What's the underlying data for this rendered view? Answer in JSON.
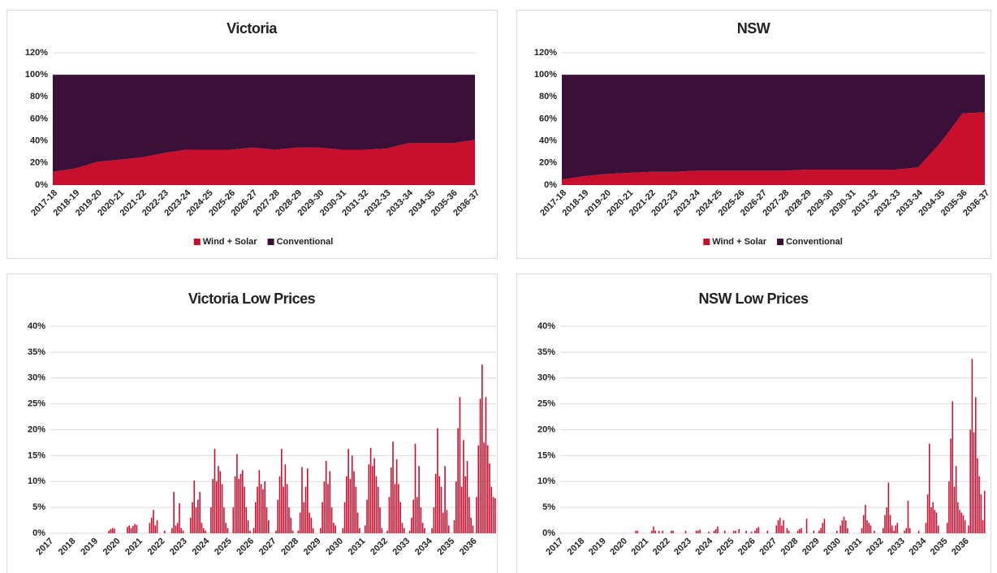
{
  "chart_data": [
    {
      "type": "area",
      "title": "Victoria",
      "stacked": true,
      "grid": true,
      "legend": "bottom",
      "categories": [
        "2017-18",
        "2018-19",
        "2019-20",
        "2020-21",
        "2021-22",
        "2022-23",
        "2023-24",
        "2024-25",
        "2025-26",
        "2026-27",
        "2027-28",
        "2028-29",
        "2029-30",
        "2030-31",
        "2031-32",
        "2032-33",
        "2033-34",
        "2034-35",
        "2035-36",
        "2036-37"
      ],
      "series": [
        {
          "name": "Wind + Solar",
          "color": "#c8102e",
          "values": [
            12,
            15,
            21,
            23,
            25,
            29,
            32,
            32,
            32,
            34,
            32,
            34,
            34,
            32,
            32,
            33,
            38,
            38,
            38,
            41
          ]
        },
        {
          "name": "Conventional",
          "color": "#3a1038",
          "values": [
            88,
            85,
            79,
            77,
            75,
            71,
            68,
            68,
            68,
            66,
            68,
            66,
            66,
            68,
            68,
            67,
            62,
            62,
            62,
            59
          ]
        }
      ],
      "ylim": [
        0,
        120
      ],
      "yticks": [
        {
          "value": 0,
          "label": "0%"
        },
        {
          "value": 20,
          "label": "20%"
        },
        {
          "value": 40,
          "label": "40%"
        },
        {
          "value": 60,
          "label": "60%"
        },
        {
          "value": 80,
          "label": "80%"
        },
        {
          "value": 100,
          "label": "100%"
        },
        {
          "value": 120,
          "label": "120%"
        }
      ]
    },
    {
      "type": "area",
      "title": "NSW",
      "stacked": true,
      "grid": true,
      "legend": "bottom",
      "categories": [
        "2017-18",
        "2018-19",
        "2019-20",
        "2020-21",
        "2021-22",
        "2022-23",
        "2023-24",
        "2024-25",
        "2025-26",
        "2026-27",
        "2027-28",
        "2028-29",
        "2029-30",
        "2030-31",
        "2031-32",
        "2032-33",
        "2033-34",
        "2034-35",
        "2035-36",
        "2036-37"
      ],
      "series": [
        {
          "name": "Wind + Solar",
          "color": "#c8102e",
          "values": [
            5,
            8,
            10,
            11,
            12,
            12,
            13,
            13,
            13,
            13,
            13,
            14,
            14,
            14,
            14,
            14,
            16,
            38,
            65,
            66
          ]
        },
        {
          "name": "Conventional",
          "color": "#3a1038",
          "values": [
            95,
            92,
            90,
            89,
            88,
            88,
            87,
            87,
            87,
            87,
            87,
            86,
            86,
            86,
            86,
            86,
            84,
            62,
            35,
            34
          ]
        }
      ],
      "ylim": [
        0,
        120
      ],
      "yticks": [
        {
          "value": 0,
          "label": "0%"
        },
        {
          "value": 20,
          "label": "20%"
        },
        {
          "value": 40,
          "label": "40%"
        },
        {
          "value": 60,
          "label": "60%"
        },
        {
          "value": 80,
          "label": "80%"
        },
        {
          "value": 100,
          "label": "100%"
        },
        {
          "value": 120,
          "label": "120%"
        }
      ]
    },
    {
      "type": "bar",
      "title": "Victoria Low Prices",
      "grid": true,
      "color": "#c8102e",
      "categories": [
        "2017",
        null,
        null,
        null,
        null,
        null,
        null,
        null,
        null,
        null,
        null,
        null,
        "2018",
        null,
        null,
        null,
        null,
        null,
        null,
        null,
        null,
        null,
        null,
        null,
        "2019",
        null,
        null,
        null,
        null,
        null,
        null,
        null,
        null,
        null,
        null,
        null,
        "2020",
        null,
        null,
        null,
        null,
        null,
        null,
        null,
        null,
        null,
        null,
        null,
        "2021",
        null,
        null,
        null,
        null,
        null,
        null,
        null,
        null,
        null,
        null,
        null,
        "2022",
        null,
        null,
        null,
        null,
        null,
        null,
        null,
        null,
        null,
        null,
        null,
        "2023",
        null,
        null,
        null,
        null,
        null,
        null,
        null,
        null,
        null,
        null,
        null,
        "2024",
        null,
        null,
        null,
        null,
        null,
        null,
        null,
        null,
        null,
        null,
        null,
        "2025",
        null,
        null,
        null,
        null,
        null,
        null,
        null,
        null,
        null,
        null,
        null,
        "2026",
        null,
        null,
        null,
        null,
        null,
        null,
        null,
        null,
        null,
        null,
        null,
        "2027",
        null,
        null,
        null,
        null,
        null,
        null,
        null,
        null,
        null,
        null,
        null,
        "2028",
        null,
        null,
        null,
        null,
        null,
        null,
        null,
        null,
        null,
        null,
        null,
        "2029",
        null,
        null,
        null,
        null,
        null,
        null,
        null,
        null,
        null,
        null,
        null,
        "2030",
        null,
        null,
        null,
        null,
        null,
        null,
        null,
        null,
        null,
        null,
        null,
        "2031",
        null,
        null,
        null,
        null,
        null,
        null,
        null,
        null,
        null,
        null,
        null,
        "2032",
        null,
        null,
        null,
        null,
        null,
        null,
        null,
        null,
        null,
        null,
        null,
        "2033",
        null,
        null,
        null,
        null,
        null,
        null,
        null,
        null,
        null,
        null,
        null,
        "2034",
        null,
        null,
        null,
        null,
        null,
        null,
        null,
        null,
        null,
        null,
        null,
        "2035",
        null,
        null,
        null,
        null,
        null,
        null,
        null,
        null,
        null,
        null,
        null,
        "2036",
        null,
        null,
        null,
        null,
        null,
        null,
        null,
        null,
        null,
        null,
        null
      ],
      "values": [
        0,
        0,
        0,
        0,
        0,
        0,
        0,
        0,
        0,
        0,
        0,
        0,
        0,
        0,
        0,
        0,
        0,
        0,
        0,
        0,
        0,
        0,
        0,
        0,
        0,
        0,
        0,
        0,
        0,
        0,
        0,
        0.5,
        0.8,
        1.0,
        0.9,
        0,
        0,
        0,
        0,
        0,
        0,
        1.2,
        1.5,
        1.0,
        1.4,
        1.8,
        1.6,
        0,
        0,
        0,
        0,
        0,
        0,
        2.0,
        3.0,
        4.5,
        1.5,
        2.5,
        0,
        0,
        0,
        0.5,
        0,
        0,
        0,
        1.0,
        8.0,
        1.5,
        2.0,
        5.8,
        1.0,
        0.5,
        0,
        0,
        0,
        3.0,
        6.0,
        10.2,
        5.0,
        6.5,
        8.0,
        2.0,
        1.0,
        0.5,
        0,
        0,
        5.0,
        10.5,
        16.3,
        10.0,
        13.0,
        12.0,
        9.5,
        5.0,
        2.0,
        1.0,
        0,
        0,
        5.0,
        11.0,
        15.3,
        10.5,
        11.5,
        12.2,
        9.0,
        5.0,
        2.5,
        0.5,
        0,
        1.0,
        6.0,
        9.0,
        12.2,
        9.5,
        8.5,
        10.0,
        5.0,
        2.5,
        0,
        0,
        0,
        0.5,
        6.5,
        11.0,
        16.3,
        9.0,
        13.3,
        9.5,
        5.0,
        3.0,
        0.5,
        0,
        0,
        0.5,
        4.0,
        12.8,
        6.0,
        9.0,
        12.5,
        4.0,
        3.0,
        1.0,
        0,
        0,
        0,
        1.0,
        6.0,
        10.0,
        14.0,
        9.5,
        12.0,
        5.0,
        2.0,
        1.5,
        0,
        0,
        0,
        1.0,
        6.0,
        11.0,
        16.3,
        10.5,
        15.0,
        12.0,
        9.0,
        4.0,
        1.0,
        0,
        0,
        1.5,
        6.5,
        13.3,
        16.5,
        13.0,
        14.5,
        11.0,
        9.0,
        5.0,
        1.0,
        0,
        0,
        0.5,
        7.0,
        12.7,
        17.7,
        9.5,
        14.3,
        9.5,
        6.0,
        2.0,
        1.0,
        0,
        0,
        0.5,
        3.0,
        6.5,
        17.3,
        7.0,
        13.0,
        5.0,
        2.0,
        1.0,
        0,
        0,
        0,
        1.0,
        5.0,
        11.5,
        20.3,
        11.0,
        9.0,
        4.0,
        13.0,
        4.5,
        1.5,
        0,
        0,
        2.5,
        10.0,
        20.3,
        26.3,
        9.0,
        18.0,
        11.0,
        14.0,
        7.0,
        3.0,
        1.5,
        0,
        7.0,
        17.0,
        26.0,
        32.6,
        17.5,
        26.3,
        17.0,
        13.5,
        9.0,
        7.0,
        6.8
      ],
      "ylim": [
        0,
        40
      ],
      "yticks": [
        {
          "value": 0,
          "label": "0%"
        },
        {
          "value": 5,
          "label": "5%"
        },
        {
          "value": 10,
          "label": "10%"
        },
        {
          "value": 15,
          "label": "15%"
        },
        {
          "value": 20,
          "label": "20%"
        },
        {
          "value": 25,
          "label": "25%"
        },
        {
          "value": 30,
          "label": "30%"
        },
        {
          "value": 35,
          "label": "35%"
        },
        {
          "value": 40,
          "label": "40%"
        }
      ]
    },
    {
      "type": "bar",
      "title": "NSW Low Prices",
      "grid": true,
      "color": "#c8102e",
      "categories": [
        "2017",
        null,
        null,
        null,
        null,
        null,
        null,
        null,
        null,
        null,
        null,
        null,
        "2018",
        null,
        null,
        null,
        null,
        null,
        null,
        null,
        null,
        null,
        null,
        null,
        "2019",
        null,
        null,
        null,
        null,
        null,
        null,
        null,
        null,
        null,
        null,
        null,
        "2020",
        null,
        null,
        null,
        null,
        null,
        null,
        null,
        null,
        null,
        null,
        null,
        "2021",
        null,
        null,
        null,
        null,
        null,
        null,
        null,
        null,
        null,
        null,
        null,
        "2022",
        null,
        null,
        null,
        null,
        null,
        null,
        null,
        null,
        null,
        null,
        null,
        "2023",
        null,
        null,
        null,
        null,
        null,
        null,
        null,
        null,
        null,
        null,
        null,
        "2024",
        null,
        null,
        null,
        null,
        null,
        null,
        null,
        null,
        null,
        null,
        null,
        "2025",
        null,
        null,
        null,
        null,
        null,
        null,
        null,
        null,
        null,
        null,
        null,
        "2026",
        null,
        null,
        null,
        null,
        null,
        null,
        null,
        null,
        null,
        null,
        null,
        "2027",
        null,
        null,
        null,
        null,
        null,
        null,
        null,
        null,
        null,
        null,
        null,
        "2028",
        null,
        null,
        null,
        null,
        null,
        null,
        null,
        null,
        null,
        null,
        null,
        "2029",
        null,
        null,
        null,
        null,
        null,
        null,
        null,
        null,
        null,
        null,
        null,
        "2030",
        null,
        null,
        null,
        null,
        null,
        null,
        null,
        null,
        null,
        null,
        null,
        "2031",
        null,
        null,
        null,
        null,
        null,
        null,
        null,
        null,
        null,
        null,
        null,
        "2032",
        null,
        null,
        null,
        null,
        null,
        null,
        null,
        null,
        null,
        null,
        null,
        "2033",
        null,
        null,
        null,
        null,
        null,
        null,
        null,
        null,
        null,
        null,
        null,
        "2034",
        null,
        null,
        null,
        null,
        null,
        null,
        null,
        null,
        null,
        null,
        null,
        "2035",
        null,
        null,
        null,
        null,
        null,
        null,
        null,
        null,
        null,
        null,
        null,
        "2036",
        null,
        null,
        null,
        null,
        null,
        null,
        null,
        null,
        null,
        null,
        null
      ],
      "values": [
        0,
        0,
        0,
        0,
        0,
        0,
        0,
        0,
        0,
        0,
        0,
        0,
        0,
        0,
        0,
        0,
        0,
        0,
        0,
        0,
        0,
        0,
        0,
        0,
        0,
        0,
        0,
        0,
        0,
        0,
        0,
        0,
        0,
        0,
        0,
        0,
        0,
        0,
        0,
        0,
        0,
        0,
        0.5,
        0.5,
        0,
        0,
        0,
        0,
        0,
        0,
        0,
        0.5,
        1.3,
        0.5,
        0,
        0.5,
        0,
        0.5,
        0,
        0,
        0,
        0,
        0.5,
        0.5,
        0,
        0,
        0,
        0,
        0,
        0,
        0.5,
        0,
        0,
        0,
        0,
        0,
        0.5,
        0.5,
        0.7,
        0,
        0,
        0,
        0,
        0.3,
        0,
        0,
        0.5,
        0.8,
        1.3,
        0,
        0,
        0,
        0.5,
        0,
        0,
        0,
        0,
        0.5,
        0.5,
        0,
        0.8,
        0,
        0,
        0,
        0.5,
        0,
        0,
        0.3,
        0,
        0.5,
        1.0,
        1.2,
        0,
        0,
        0,
        0,
        0.5,
        0,
        0,
        0,
        0,
        1.5,
        2.5,
        3.0,
        1.5,
        2.5,
        0,
        1.0,
        0.5,
        0,
        0,
        0,
        0,
        0.5,
        0.8,
        1.0,
        0,
        0,
        2.8,
        0,
        0,
        0,
        0.5,
        0,
        0,
        0.5,
        1.0,
        2.0,
        2.8,
        0,
        0,
        0,
        0,
        0,
        0,
        0.5,
        0,
        1.5,
        2.5,
        3.2,
        2.5,
        1.0,
        0,
        0,
        0,
        0,
        0,
        0,
        0,
        1.0,
        3.5,
        5.5,
        2.5,
        2.0,
        1.5,
        0,
        0.5,
        0,
        0,
        0,
        0,
        1.0,
        3.5,
        5.0,
        9.8,
        3.5,
        1.5,
        0.5,
        1.5,
        2.0,
        0,
        0,
        0,
        0.5,
        1.0,
        6.3,
        1.0,
        0,
        0,
        0,
        0,
        0.5,
        0,
        0,
        0,
        2.0,
        7.5,
        17.3,
        5.0,
        6.0,
        4.5,
        4.0,
        1.5,
        0,
        0,
        0,
        0,
        2.0,
        10.0,
        18.3,
        25.5,
        9.0,
        13.0,
        6.0,
        4.5,
        4.0,
        3.5,
        2.5,
        0,
        1.5,
        20.0,
        33.7,
        19.5,
        26.3,
        14.5,
        11.0,
        7.5,
        2.5,
        8.2,
        0
      ],
      "ylim": [
        0,
        40
      ],
      "yticks": [
        {
          "value": 0,
          "label": "0%"
        },
        {
          "value": 5,
          "label": "5%"
        },
        {
          "value": 10,
          "label": "10%"
        },
        {
          "value": 15,
          "label": "15%"
        },
        {
          "value": 20,
          "label": "20%"
        },
        {
          "value": 25,
          "label": "25%"
        },
        {
          "value": 30,
          "label": "30%"
        },
        {
          "value": 35,
          "label": "35%"
        },
        {
          "value": 40,
          "label": "40%"
        }
      ]
    }
  ]
}
